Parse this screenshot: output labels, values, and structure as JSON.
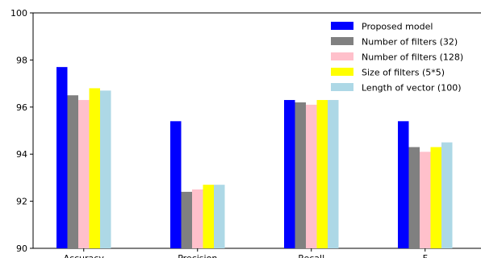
{
  "chart_data": {
    "type": "bar",
    "title": "",
    "xlabel": "",
    "ylabel": "",
    "categories": [
      "Accuracy",
      "Precision",
      "Recall",
      "F"
    ],
    "ylim": [
      90,
      100
    ],
    "yticks": [
      90,
      92,
      94,
      96,
      98,
      100
    ],
    "grid": false,
    "legend_position": "top-right",
    "series": [
      {
        "name": "Proposed model",
        "color": "#0000ff",
        "values": [
          97.7,
          95.4,
          96.3,
          95.4
        ]
      },
      {
        "name": "Number of filters (32)",
        "color": "#808080",
        "values": [
          96.5,
          92.4,
          96.2,
          94.3
        ]
      },
      {
        "name": "Number of filters (128)",
        "color": "#ffc0cb",
        "values": [
          96.3,
          92.5,
          96.1,
          94.1
        ]
      },
      {
        "name": "Size of filters (5*5)",
        "color": "#ffff00",
        "values": [
          96.8,
          92.7,
          96.3,
          94.3
        ]
      },
      {
        "name": "Length of vector (100)",
        "color": "#add8e6",
        "values": [
          96.7,
          92.7,
          96.3,
          94.5
        ]
      }
    ]
  }
}
